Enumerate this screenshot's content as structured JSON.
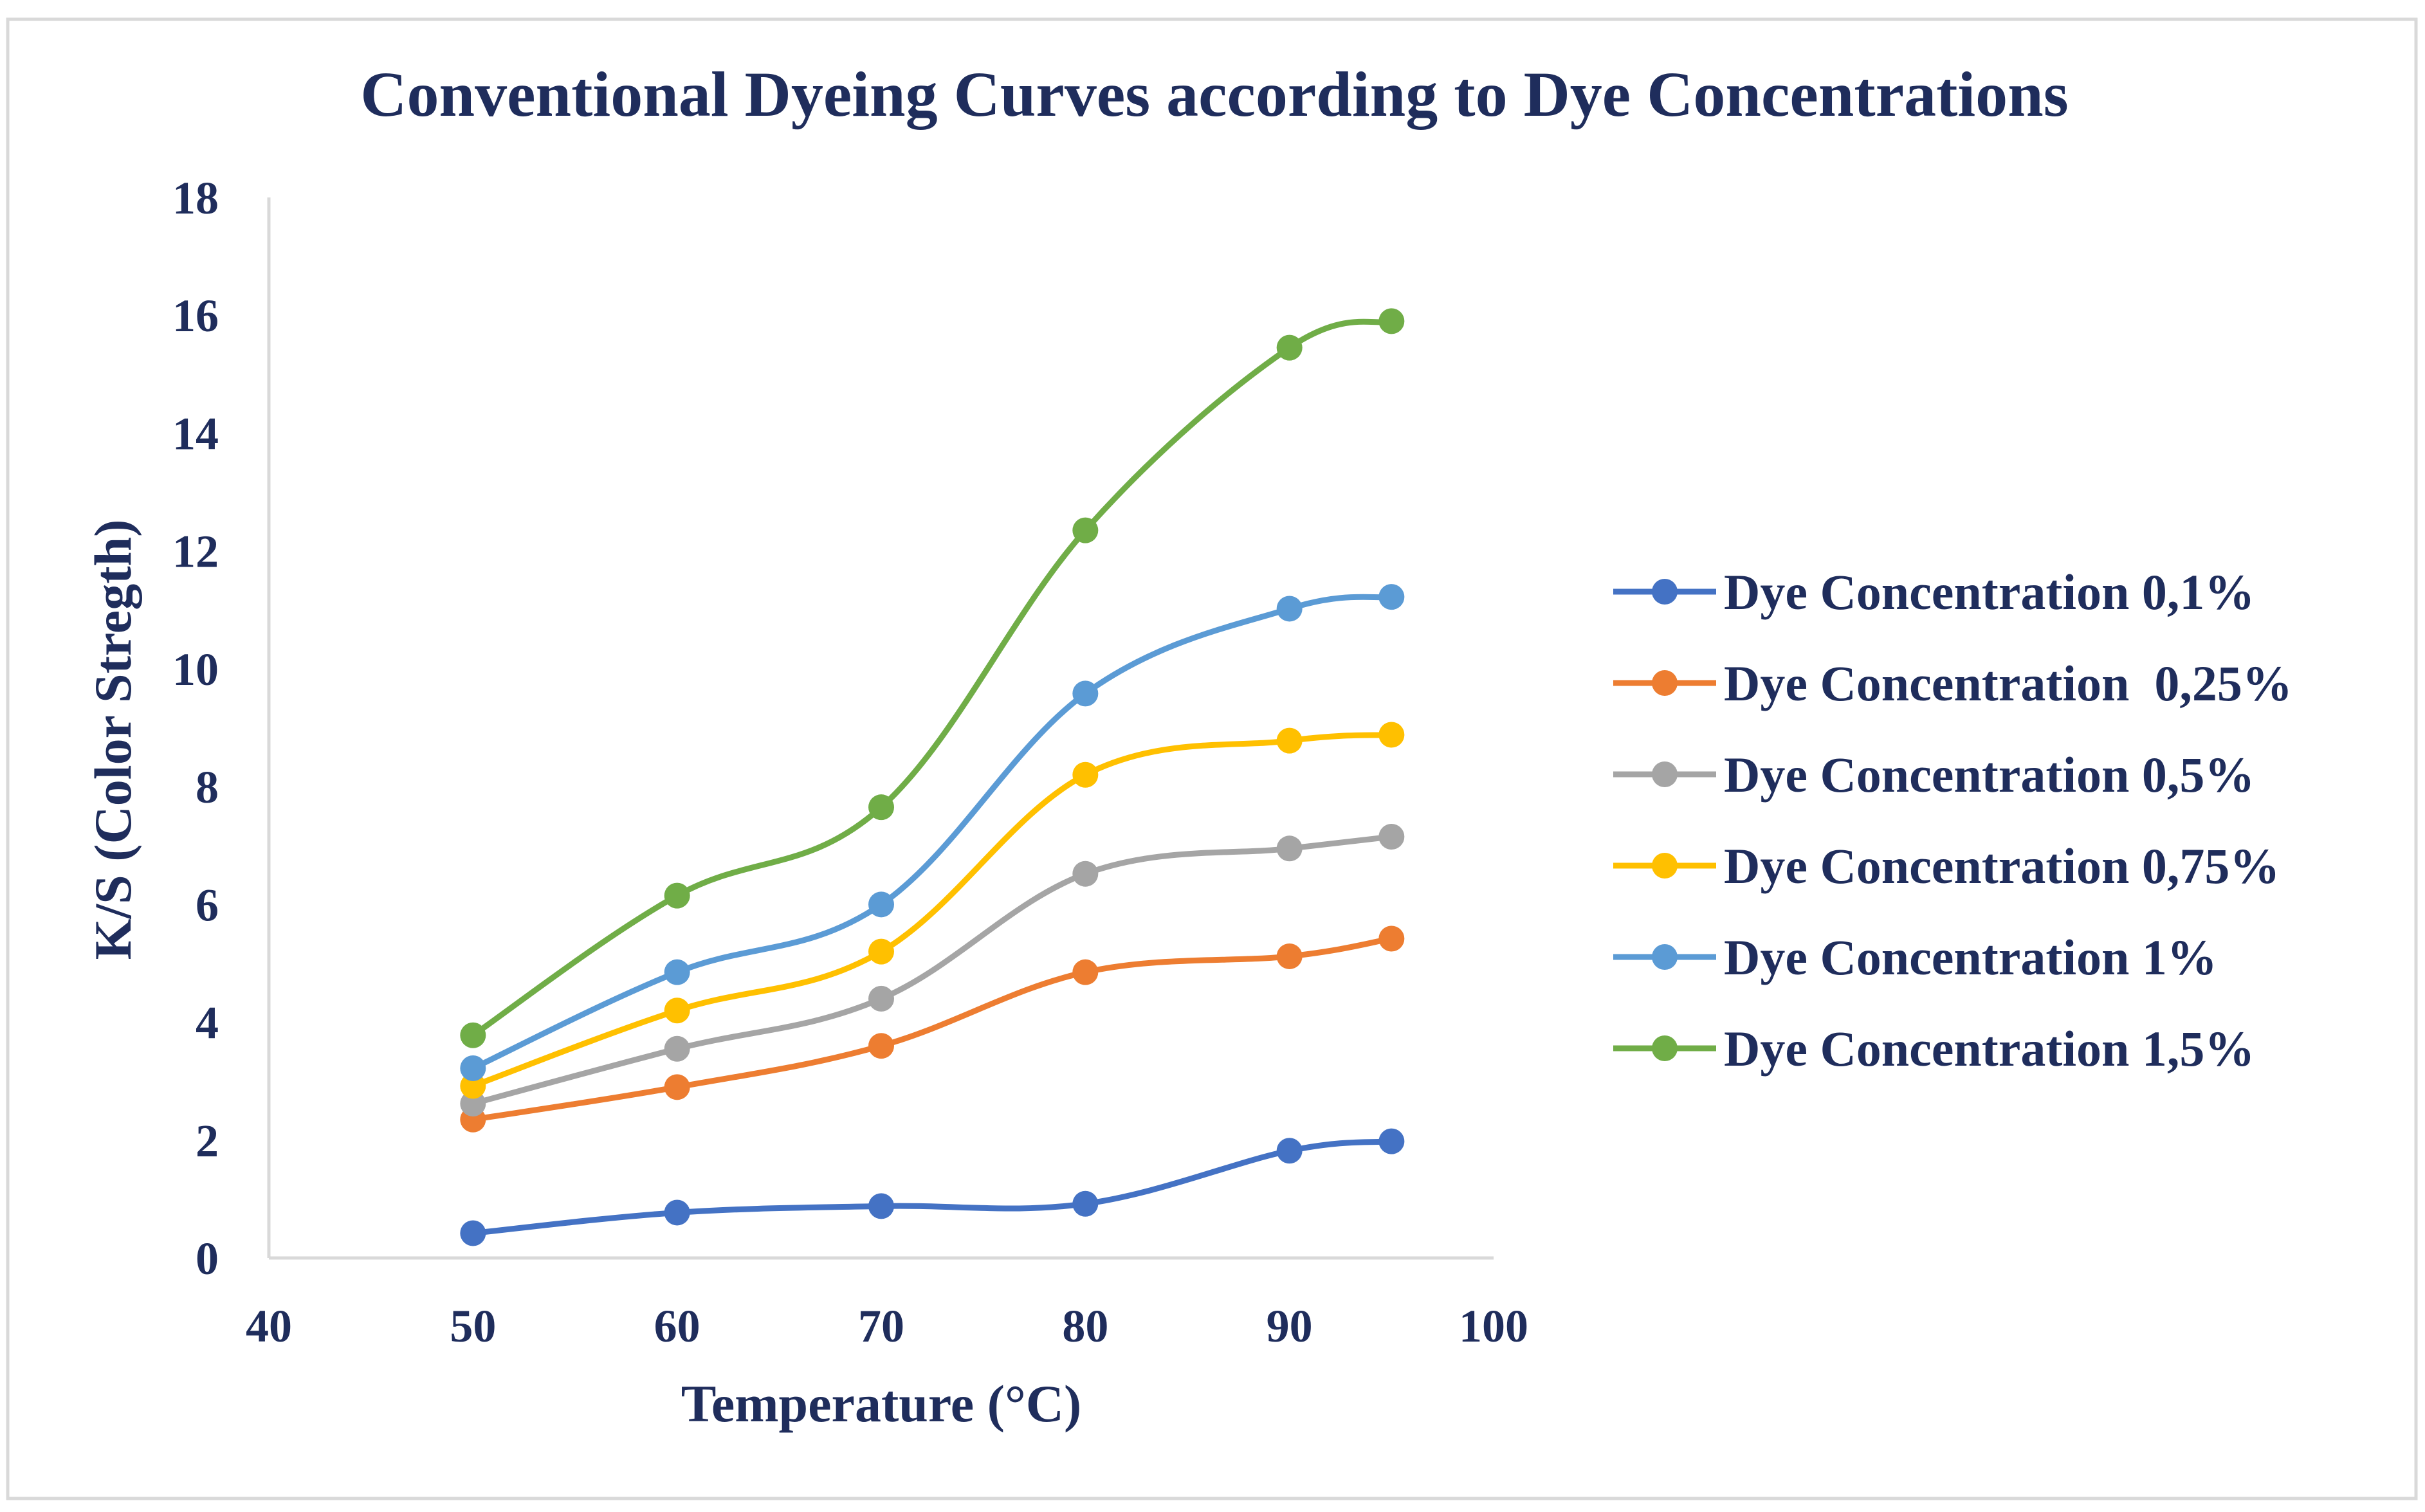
{
  "chart_data": {
    "type": "line",
    "title": "Conventional Dyeing Curves according to Dye Concentrations",
    "xlabel": "Temperature (°C)",
    "ylabel": "K/S (Color Stregth)",
    "xlim": [
      40,
      100
    ],
    "ylim": [
      0,
      18
    ],
    "xticks": [
      40,
      50,
      60,
      70,
      80,
      90,
      100
    ],
    "yticks": [
      0,
      2,
      4,
      6,
      8,
      10,
      12,
      14,
      16,
      18
    ],
    "x": [
      50,
      60,
      70,
      80,
      90,
      95
    ],
    "grid": false,
    "legend_position": "right",
    "series": [
      {
        "name": "Dye Concentration 0,1%",
        "color": "#4472c4",
        "values": [
          0.42,
          0.77,
          0.88,
          0.92,
          1.82,
          1.98
        ]
      },
      {
        "name": "Dye Concentration  0,25%",
        "color": "#ed7d31",
        "values": [
          2.35,
          2.9,
          3.6,
          4.85,
          5.12,
          5.42
        ]
      },
      {
        "name": "Dye Concentration 0,5%",
        "color": "#a5a5a5",
        "values": [
          2.62,
          3.55,
          4.4,
          6.52,
          6.95,
          7.15
        ]
      },
      {
        "name": "Dye Concentration 0,75%",
        "color": "#ffc000",
        "values": [
          2.92,
          4.2,
          5.2,
          8.2,
          8.78,
          8.88
        ]
      },
      {
        "name": "Dye Concentration 1%",
        "color": "#5b9bd5",
        "values": [
          3.22,
          4.85,
          6.0,
          9.58,
          11.02,
          11.22
        ]
      },
      {
        "name": "Dye Concentration 1,5%",
        "color": "#70ad47",
        "values": [
          3.78,
          6.15,
          7.65,
          12.35,
          15.45,
          15.9
        ]
      }
    ]
  }
}
